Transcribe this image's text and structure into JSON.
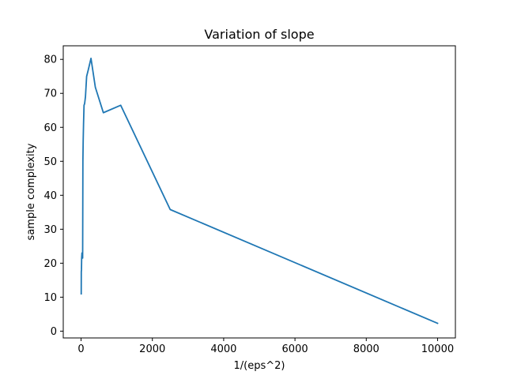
{
  "chart_data": {
    "type": "line",
    "title": "Variation of slope",
    "xlabel": "1/(eps^2)",
    "ylabel": "sample complexity",
    "xlim": [
      -500,
      10500
    ],
    "ylim": [
      -2,
      84
    ],
    "xticks": [
      0,
      2000,
      4000,
      6000,
      8000,
      10000
    ],
    "yticks": [
      0,
      10,
      20,
      30,
      40,
      50,
      60,
      70,
      80
    ],
    "grid": false,
    "legend": "none",
    "series": [
      {
        "color": "#1f77b4",
        "x": [
          4,
          6,
          11,
          16,
          25,
          44,
          51,
          59,
          69,
          83,
          100,
          123,
          156,
          204,
          278,
          400,
          625,
          1111,
          2500,
          10000
        ],
        "y": [
          11.0,
          17.5,
          18.0,
          21.5,
          23.0,
          21.5,
          50.0,
          56.0,
          61.0,
          66.5,
          67.0,
          69.0,
          75.0,
          77.0,
          80.3,
          71.8,
          64.3,
          66.5,
          35.8,
          2.3
        ]
      }
    ]
  }
}
